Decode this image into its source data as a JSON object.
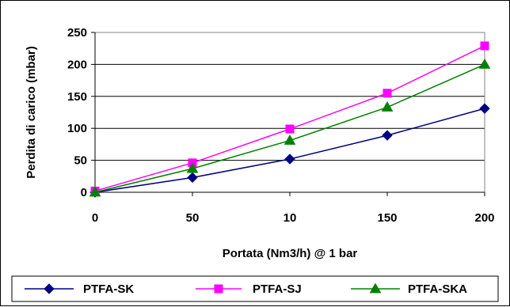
{
  "chart_data": {
    "type": "line",
    "title": "",
    "xlabel": "Portata (Nm3/h) @ 1 bar",
    "ylabel": "Perdita di carico (mbar)",
    "categories": [
      "0",
      "50",
      "10",
      "150",
      "200"
    ],
    "ylim": [
      0,
      250
    ],
    "yticks": [
      "0",
      "50",
      "100",
      "150",
      "200",
      "250"
    ],
    "grid": "horizontal",
    "legend_position": "bottom",
    "series": [
      {
        "name": "PTFA-SK",
        "color": "#000080",
        "marker": "diamond",
        "values": [
          0,
          23,
          52,
          89,
          131
        ]
      },
      {
        "name": "PTFA-SJ",
        "color": "#ff00ff",
        "marker": "square",
        "values": [
          2,
          46,
          99,
          155,
          229
        ]
      },
      {
        "name": "PTFA-SKA",
        "color": "#008000",
        "marker": "triangle",
        "values": [
          0,
          37,
          81,
          133,
          200
        ]
      }
    ]
  }
}
